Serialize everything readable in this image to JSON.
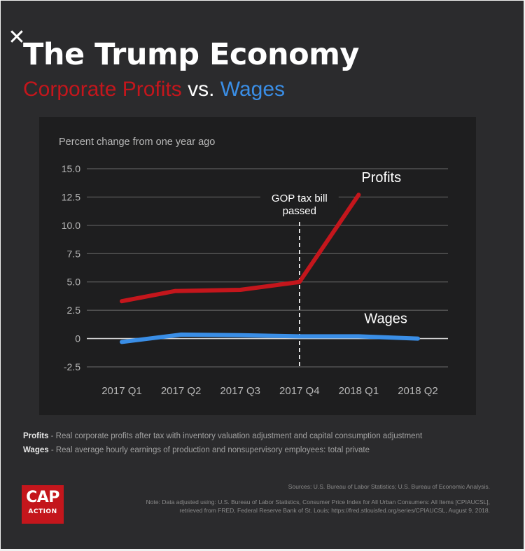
{
  "close_icon": "✕",
  "title": "The Trump Economy",
  "subtitle": {
    "profits": "Corporate Profits",
    "vs": " vs. ",
    "wages": "Wages"
  },
  "colors": {
    "background": "#2b2b2d",
    "panel": "#1e1e1f",
    "profits": "#c4161c",
    "wages": "#3a8ee6",
    "text": "#ffffff",
    "grid": "#6b6b6b"
  },
  "chart_data": {
    "type": "line",
    "title": "",
    "ylabel": "Percent change from one year ago",
    "xlabel": "",
    "categories": [
      "2017 Q1",
      "2017 Q2",
      "2017 Q3",
      "2017 Q4",
      "2018 Q1",
      "2018 Q2"
    ],
    "yticks": [
      "15.0",
      "12.5",
      "10.0",
      "7.5",
      "5.0",
      "2.5",
      "0",
      "-2.5"
    ],
    "ylim": [
      -2.5,
      15.0
    ],
    "grid": true,
    "series": [
      {
        "name": "Profits",
        "color": "#c4161c",
        "points": [
          [
            0,
            3.3
          ],
          [
            0.9,
            4.2
          ],
          [
            2.0,
            4.3
          ],
          [
            3.0,
            5.0
          ],
          [
            4.0,
            12.7
          ]
        ]
      },
      {
        "name": "Wages",
        "color": "#3a8ee6",
        "points": [
          [
            0,
            -0.3
          ],
          [
            1.0,
            0.35
          ],
          [
            2.0,
            0.3
          ],
          [
            3.0,
            0.2
          ],
          [
            4.0,
            0.2
          ],
          [
            5.0,
            0.0
          ]
        ]
      }
    ],
    "annotation": {
      "text_lines": [
        "GOP tax bill",
        "passed"
      ],
      "x": 3.0
    }
  },
  "footnotes": {
    "profits_label": "Profits",
    "profits_text": " - Real corporate profits after tax with inventory valuation adjustment and capital consumption adjustment",
    "wages_label": "Wages",
    "wages_text": " - Real average hourly earnings of production and nonsupervisory employees: total private"
  },
  "logo": {
    "line1": "CAP",
    "line2": "ACTION"
  },
  "sources": {
    "line1": "Sources: U.S. Bureau of Labor Statistics; U.S. Bureau of Economic Analysis.",
    "line2": "Note: Data adjusted using: U.S. Bureau of Labor Statistics, Consumer Price Index for All Urban Consumers: All Items [CPIAUCSL],",
    "line3": "retrieved from FRED, Federal Reserve Bank of St. Louis; https://fred.stlouisfed.org/series/CPIAUCSL, August 9, 2018."
  }
}
